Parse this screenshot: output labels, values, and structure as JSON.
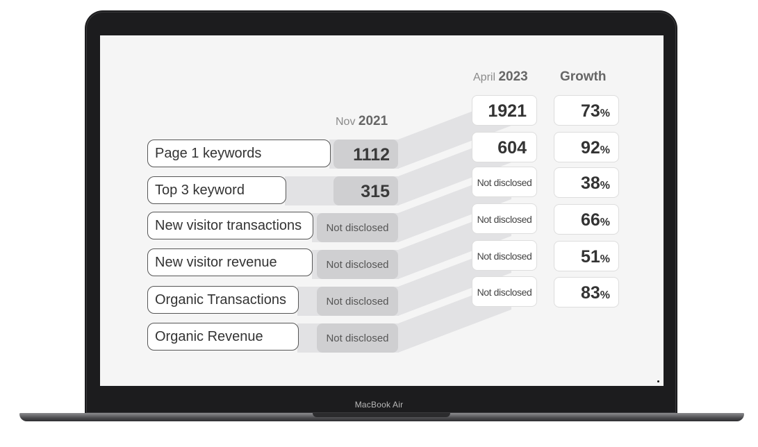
{
  "device": {
    "brand": "MacBook Air"
  },
  "headers": {
    "nov_month": "Nov",
    "nov_year": "2021",
    "april_month": "April",
    "april_year": "2023",
    "growth": "Growth"
  },
  "rows": [
    {
      "label": "Page 1 keywords",
      "nov": "1112",
      "april": "1921",
      "growth": "73",
      "growth_unit": "%"
    },
    {
      "label": "Top 3 keyword",
      "nov": "315",
      "april": "604",
      "growth": "92",
      "growth_unit": "%"
    },
    {
      "label": "New visitor transactions",
      "nov": "Not disclosed",
      "april": "Not disclosed",
      "growth": "38",
      "growth_unit": "%"
    },
    {
      "label": "New visitor revenue",
      "nov": "Not disclosed",
      "april": "Not disclosed",
      "growth": "66",
      "growth_unit": "%"
    },
    {
      "label": "Organic Transactions",
      "nov": "Not disclosed",
      "april": "Not disclosed",
      "growth": "51",
      "growth_unit": "%"
    },
    {
      "label": "Organic Revenue",
      "nov": "Not disclosed",
      "april": "Not disclosed",
      "growth": "83",
      "growth_unit": "%"
    }
  ],
  "colors": {
    "nov_box": "#cfcfd1",
    "connector": "#e2e2e4",
    "screen": "#f5f5f5",
    "bezel": "#1c1c1e"
  }
}
